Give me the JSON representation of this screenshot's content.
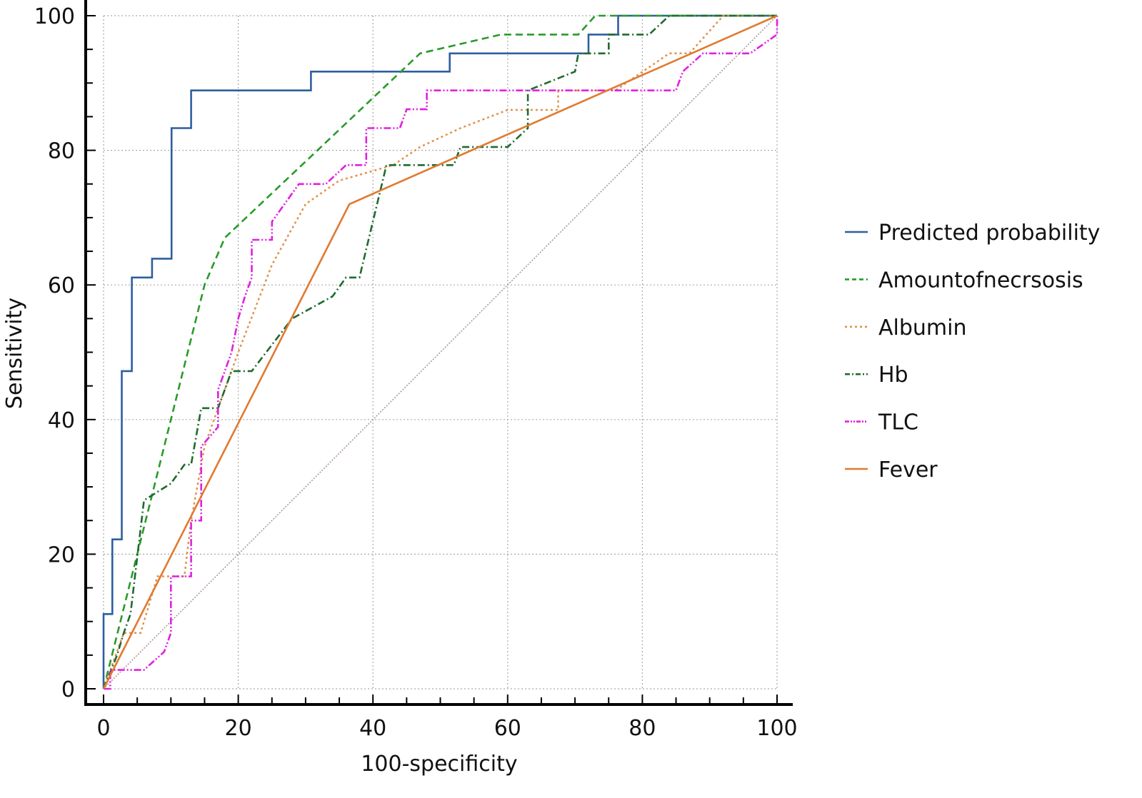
{
  "chart_data": {
    "type": "line",
    "title": "",
    "xlabel": "100-specificity",
    "ylabel": "Sensitivity",
    "xlim": [
      0,
      100
    ],
    "ylim": [
      0,
      100
    ],
    "xticks": [
      "0",
      "20",
      "40",
      "60",
      "80",
      "100"
    ],
    "yticks": [
      "0",
      "20",
      "40",
      "60",
      "80",
      "100"
    ],
    "grid": true,
    "legend_placement": "right",
    "reference_line": {
      "x": [
        0,
        100
      ],
      "y": [
        0,
        100
      ],
      "color": "#b09090"
    },
    "series": [
      {
        "name": "Predicted probability",
        "color": "#2e5f9e",
        "dash": "",
        "points": [
          [
            0,
            0
          ],
          [
            0,
            11.1
          ],
          [
            1.3,
            11.1
          ],
          [
            1.3,
            22.2
          ],
          [
            2.7,
            22.2
          ],
          [
            2.7,
            25
          ],
          [
            2.7,
            47.2
          ],
          [
            4.2,
            47.2
          ],
          [
            4.2,
            61.1
          ],
          [
            7.2,
            61.1
          ],
          [
            7.2,
            63.9
          ],
          [
            10.1,
            63.9
          ],
          [
            10.1,
            83.3
          ],
          [
            13,
            83.3
          ],
          [
            13,
            88.9
          ],
          [
            30.8,
            88.9
          ],
          [
            30.8,
            91.7
          ],
          [
            51.4,
            91.7
          ],
          [
            51.4,
            94.4
          ],
          [
            72,
            94.4
          ],
          [
            72,
            97.2
          ],
          [
            76.4,
            97.2
          ],
          [
            76.4,
            100
          ],
          [
            100,
            100
          ]
        ]
      },
      {
        "name": "Amountofnecrsosis",
        "color": "#2a9a2a",
        "dash": "10,6",
        "points": [
          [
            0,
            0
          ],
          [
            5,
            20
          ],
          [
            10,
            40
          ],
          [
            15,
            60
          ],
          [
            18,
            67
          ],
          [
            47,
            94.4
          ],
          [
            59,
            97.2
          ],
          [
            70.5,
            97.2
          ],
          [
            73,
            100
          ],
          [
            100,
            100
          ]
        ]
      },
      {
        "name": "Albumin",
        "color": "#e0924a",
        "dash": "3,4",
        "points": [
          [
            0,
            0
          ],
          [
            3,
            8.3
          ],
          [
            5.5,
            8.3
          ],
          [
            8,
            16.7
          ],
          [
            12,
            16.7
          ],
          [
            13,
            25
          ],
          [
            15,
            36
          ],
          [
            17,
            41.7
          ],
          [
            20,
            50
          ],
          [
            25,
            63
          ],
          [
            30,
            72
          ],
          [
            35,
            75.5
          ],
          [
            43,
            77.8
          ],
          [
            47,
            80.5
          ],
          [
            53,
            83.3
          ],
          [
            60,
            86
          ],
          [
            67.5,
            86
          ],
          [
            67.5,
            88.9
          ],
          [
            76,
            88.9
          ],
          [
            84,
            94.4
          ],
          [
            87,
            94.4
          ],
          [
            92,
            100
          ],
          [
            100,
            100
          ]
        ]
      },
      {
        "name": "Hb",
        "color": "#1f6b2e",
        "dash": "10,4,2,4",
        "points": [
          [
            0,
            0
          ],
          [
            2,
            5
          ],
          [
            3,
            8.3
          ],
          [
            4,
            11.1
          ],
          [
            6,
            28
          ],
          [
            10,
            30.5
          ],
          [
            12,
            33.3
          ],
          [
            13,
            33.3
          ],
          [
            14.5,
            41.7
          ],
          [
            17,
            41.7
          ],
          [
            19,
            47.2
          ],
          [
            22,
            47.2
          ],
          [
            28,
            55
          ],
          [
            34,
            58.3
          ],
          [
            36,
            61.1
          ],
          [
            38,
            61.1
          ],
          [
            42,
            77.8
          ],
          [
            52,
            77.8
          ],
          [
            53,
            80.5
          ],
          [
            60,
            80.5
          ],
          [
            63,
            83.3
          ],
          [
            63,
            88.9
          ],
          [
            70,
            91.7
          ],
          [
            70.5,
            94.4
          ],
          [
            75,
            94.4
          ],
          [
            75,
            97.2
          ],
          [
            81,
            97.2
          ],
          [
            84,
            100
          ],
          [
            100,
            100
          ]
        ]
      },
      {
        "name": "TLC",
        "color": "#e020e0",
        "dash": "10,3,2,3,2,3",
        "points": [
          [
            0,
            0
          ],
          [
            1,
            0
          ],
          [
            1,
            2.8
          ],
          [
            6,
            2.8
          ],
          [
            9,
            5.5
          ],
          [
            10,
            8.3
          ],
          [
            10,
            16.7
          ],
          [
            13,
            16.7
          ],
          [
            13,
            25
          ],
          [
            14.5,
            25
          ],
          [
            14.5,
            36
          ],
          [
            17,
            38.9
          ],
          [
            17,
            44.4
          ],
          [
            19,
            50
          ],
          [
            20,
            55
          ],
          [
            21,
            58.3
          ],
          [
            22,
            61.1
          ],
          [
            22,
            66.7
          ],
          [
            25,
            66.7
          ],
          [
            25,
            69.4
          ],
          [
            27,
            72.2
          ],
          [
            29,
            75
          ],
          [
            33,
            75
          ],
          [
            36,
            77.8
          ],
          [
            39,
            77.8
          ],
          [
            39,
            83.3
          ],
          [
            44,
            83.3
          ],
          [
            45,
            86.1
          ],
          [
            48,
            86.1
          ],
          [
            48,
            88.9
          ],
          [
            85,
            88.9
          ],
          [
            86,
            91.7
          ],
          [
            89,
            94.4
          ],
          [
            96,
            94.4
          ],
          [
            100,
            97.2
          ],
          [
            100,
            100
          ]
        ]
      },
      {
        "name": "Fever",
        "color": "#e07a30",
        "dash": "",
        "points": [
          [
            0,
            0
          ],
          [
            36.5,
            72
          ],
          [
            100,
            100
          ]
        ]
      }
    ]
  }
}
